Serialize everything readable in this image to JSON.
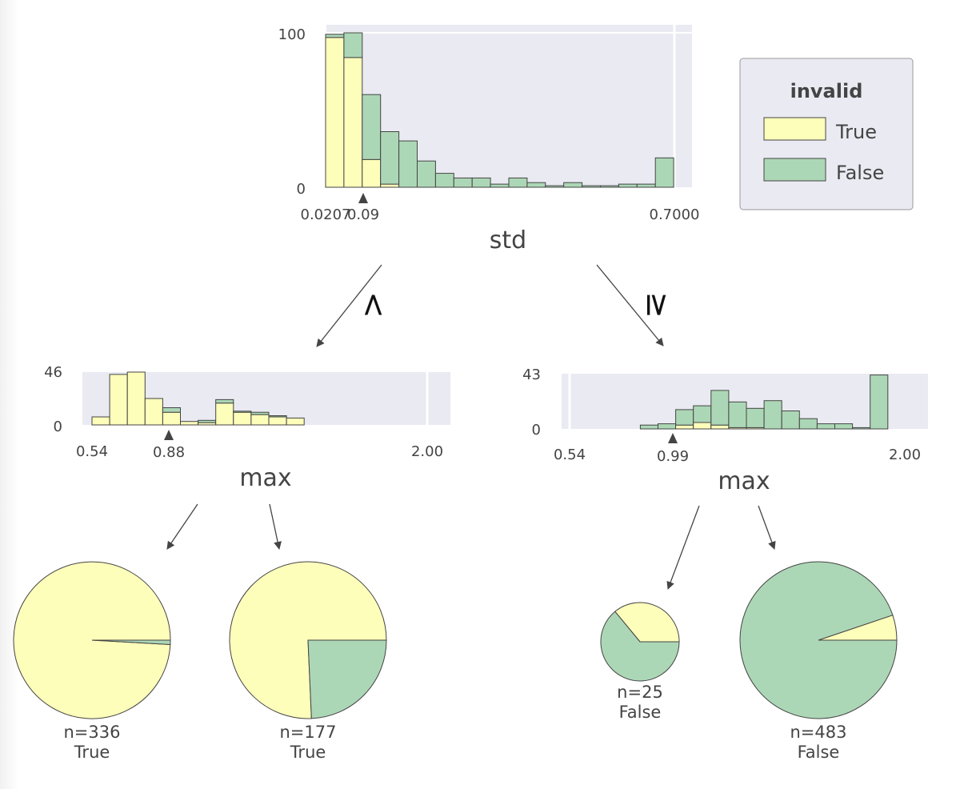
{
  "legend": {
    "title": "invalid",
    "items": [
      {
        "label": "True",
        "color": "#fefebb"
      },
      {
        "label": "False",
        "color": "#acd7b6"
      }
    ]
  },
  "edges": {
    "left": "<",
    "right": "≥"
  },
  "chart_data": [
    {
      "type": "bar",
      "stacked": true,
      "node": "root",
      "feature": "std",
      "ytick_labels": [
        "0",
        "100"
      ],
      "ylim": [
        0,
        100
      ],
      "xtick_labels": [
        "0.0207",
        "0.09",
        "0.7000"
      ],
      "split": 0.09,
      "xlim": [
        0.0207,
        0.7
      ],
      "series": [
        {
          "name": "True",
          "values": [
            97,
            84,
            18,
            2,
            0,
            0,
            0,
            0,
            0,
            0,
            0,
            0,
            0,
            0,
            0,
            0,
            0,
            0,
            0
          ]
        },
        {
          "name": "False",
          "values": [
            2,
            16,
            42,
            34,
            30,
            17,
            9,
            6,
            6,
            2,
            6,
            3,
            1,
            3,
            1,
            1,
            2,
            2,
            19
          ]
        }
      ]
    },
    {
      "type": "bar",
      "stacked": true,
      "node": "left",
      "feature": "max",
      "ytick_labels": [
        "0",
        "46"
      ],
      "ylim": [
        0,
        46
      ],
      "xtick_labels": [
        "0.54",
        "0.88",
        "2.00"
      ],
      "split": 0.88,
      "xlim": [
        0.54,
        2.0
      ],
      "series": [
        {
          "name": "True",
          "values": [
            7,
            44,
            46,
            23,
            11,
            3,
            2,
            19,
            11,
            9,
            7,
            6,
            0,
            0,
            0,
            0,
            0,
            0,
            0
          ]
        },
        {
          "name": "False",
          "values": [
            0,
            0,
            0,
            0,
            4,
            0,
            2,
            3,
            1,
            2,
            1,
            0,
            0,
            0,
            0,
            0,
            0,
            0,
            0
          ]
        }
      ]
    },
    {
      "type": "bar",
      "stacked": true,
      "node": "right",
      "feature": "max",
      "ytick_labels": [
        "0",
        "43"
      ],
      "ylim": [
        0,
        43
      ],
      "xtick_labels": [
        "0.54",
        "0.99",
        "2.00"
      ],
      "split": 0.99,
      "xlim": [
        0.54,
        2.0
      ],
      "series": [
        {
          "name": "True",
          "values": [
            0,
            0,
            0,
            0,
            0,
            0,
            3,
            5,
            3,
            1,
            1,
            0,
            0,
            0,
            0,
            0,
            0,
            0
          ]
        },
        {
          "name": "False",
          "values": [
            0,
            0,
            0,
            0,
            3,
            4,
            12,
            13,
            27,
            20,
            15,
            22,
            14,
            8,
            4,
            4,
            1,
            42
          ]
        }
      ]
    },
    {
      "type": "pie",
      "node": "leaf1",
      "n_label": "n=336",
      "prediction": "True",
      "slices": [
        {
          "name": "True",
          "value": 333
        },
        {
          "name": "False",
          "value": 3
        }
      ]
    },
    {
      "type": "pie",
      "node": "leaf2",
      "n_label": "n=177",
      "prediction": "True",
      "slices": [
        {
          "name": "True",
          "value": 134
        },
        {
          "name": "False",
          "value": 43
        }
      ]
    },
    {
      "type": "pie",
      "node": "leaf3",
      "n_label": "n=25",
      "prediction": "False",
      "slices": [
        {
          "name": "True",
          "value": 9
        },
        {
          "name": "False",
          "value": 16
        }
      ]
    },
    {
      "type": "pie",
      "node": "leaf4",
      "n_label": "n=483",
      "prediction": "False",
      "slices": [
        {
          "name": "True",
          "value": 25
        },
        {
          "name": "False",
          "value": 458
        }
      ]
    }
  ]
}
